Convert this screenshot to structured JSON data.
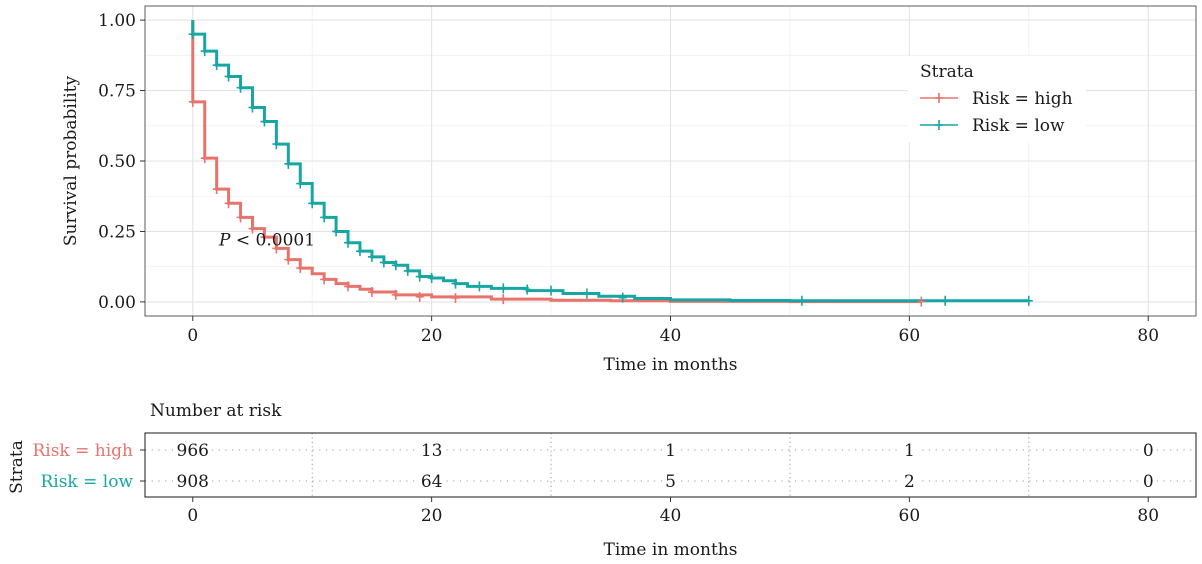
{
  "chart_data": [
    {
      "type": "line",
      "subtype": "kaplan-meier",
      "xlabel": "Time in months",
      "ylabel": "Survival probability",
      "xlim": [
        -4,
        84
      ],
      "ylim": [
        -0.05,
        1.05
      ],
      "x_ticks": [
        0,
        20,
        40,
        60,
        80
      ],
      "y_ticks": [
        0.0,
        0.25,
        0.5,
        0.75,
        1.0
      ],
      "y_tick_labels": [
        "0.00",
        "0.25",
        "0.50",
        "0.75",
        "1.00"
      ],
      "grid": true,
      "legend_title": "Strata",
      "legend_position": "top-right",
      "annotation": {
        "italic": "P",
        "text": " < 0.0001",
        "x": 2.2,
        "y": 0.2
      },
      "series": [
        {
          "name": "Risk = high",
          "color": "#E8736C",
          "x": [
            0,
            0,
            1,
            2,
            3,
            4,
            5,
            6,
            7,
            8,
            9,
            10,
            11,
            12,
            13,
            14,
            15,
            17,
            20,
            25,
            30,
            35,
            40,
            45,
            50,
            61
          ],
          "y": [
            1.0,
            0.71,
            0.51,
            0.4,
            0.35,
            0.3,
            0.26,
            0.23,
            0.19,
            0.15,
            0.12,
            0.1,
            0.08,
            0.065,
            0.055,
            0.045,
            0.035,
            0.025,
            0.018,
            0.01,
            0.006,
            0.004,
            0.002,
            0.002,
            0.001,
            0.001
          ],
          "censor_x": [
            0,
            1,
            2,
            3,
            4,
            5,
            6,
            7,
            8,
            9,
            11,
            13,
            15,
            17,
            19,
            22,
            26,
            61
          ],
          "censor_y": [
            0.71,
            0.51,
            0.4,
            0.35,
            0.3,
            0.26,
            0.23,
            0.19,
            0.15,
            0.12,
            0.08,
            0.055,
            0.035,
            0.025,
            0.018,
            0.014,
            0.01,
            0.001
          ]
        },
        {
          "name": "Risk = low",
          "color": "#17A6A4",
          "x": [
            0,
            0,
            1,
            2,
            3,
            4,
            5,
            6,
            7,
            8,
            9,
            10,
            11,
            12,
            13,
            14,
            15,
            16,
            17,
            18,
            19,
            20,
            21,
            22,
            23,
            25,
            28,
            31,
            34,
            37,
            40,
            45,
            50,
            70
          ],
          "y": [
            1.0,
            0.95,
            0.89,
            0.84,
            0.8,
            0.76,
            0.69,
            0.64,
            0.56,
            0.49,
            0.42,
            0.35,
            0.3,
            0.25,
            0.21,
            0.18,
            0.16,
            0.14,
            0.13,
            0.11,
            0.09,
            0.085,
            0.075,
            0.065,
            0.055,
            0.048,
            0.04,
            0.03,
            0.02,
            0.012,
            0.007,
            0.005,
            0.004,
            0.004
          ],
          "censor_x": [
            0,
            1,
            2,
            3,
            4,
            5,
            6,
            7,
            8,
            9,
            10,
            11,
            12,
            13,
            14,
            15,
            16,
            17,
            18,
            19,
            20,
            22,
            24,
            26,
            28,
            30,
            33,
            36,
            51,
            63,
            70
          ],
          "censor_y": [
            0.95,
            0.89,
            0.84,
            0.8,
            0.76,
            0.69,
            0.64,
            0.56,
            0.49,
            0.42,
            0.35,
            0.3,
            0.25,
            0.21,
            0.18,
            0.16,
            0.14,
            0.13,
            0.11,
            0.09,
            0.085,
            0.065,
            0.055,
            0.048,
            0.044,
            0.04,
            0.03,
            0.015,
            0.004,
            0.004,
            0.004
          ]
        }
      ]
    },
    {
      "type": "table",
      "title": "Number at risk",
      "ylabel": "Strata",
      "xlabel": "Time in months",
      "x_ticks": [
        0,
        20,
        40,
        60,
        80
      ],
      "times": [
        0,
        20,
        40,
        60,
        80
      ],
      "rows": [
        {
          "name": "Risk = high",
          "color": "#E8736C",
          "values": [
            "966",
            "13",
            "1",
            "1",
            "0"
          ]
        },
        {
          "name": "Risk = low",
          "color": "#17A6A4",
          "values": [
            "908",
            "64",
            "5",
            "2",
            "0"
          ]
        }
      ]
    }
  ]
}
